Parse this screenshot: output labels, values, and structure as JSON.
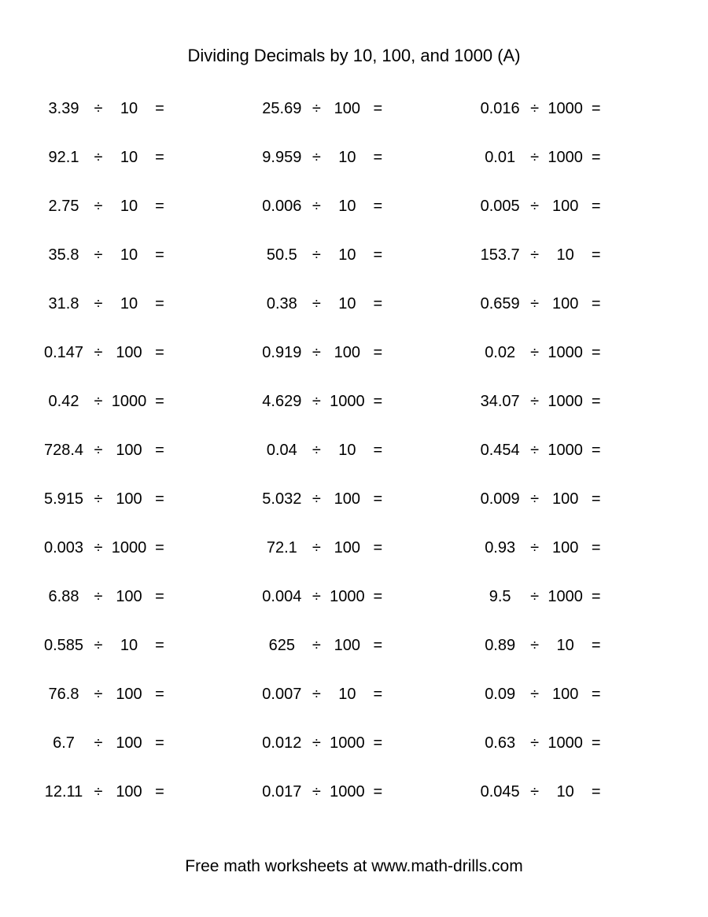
{
  "title": "Dividing Decimals by 10, 100, and 1000 (A)",
  "footer": "Free math worksheets at www.math-drills.com",
  "op_symbol": "÷",
  "eq_symbol": "=",
  "style": {
    "background_color": "#ffffff",
    "text_color": "#000000",
    "title_fontsize": 22,
    "body_fontsize": 20,
    "footer_fontsize": 21,
    "font_family": "Arial",
    "row_gap": 42,
    "columns": 3,
    "rows": 15
  },
  "columns": [
    [
      {
        "dividend": "3.39",
        "divisor": "10"
      },
      {
        "dividend": "92.1",
        "divisor": "10"
      },
      {
        "dividend": "2.75",
        "divisor": "10"
      },
      {
        "dividend": "35.8",
        "divisor": "10"
      },
      {
        "dividend": "31.8",
        "divisor": "10"
      },
      {
        "dividend": "0.147",
        "divisor": "100"
      },
      {
        "dividend": "0.42",
        "divisor": "1000"
      },
      {
        "dividend": "728.4",
        "divisor": "100"
      },
      {
        "dividend": "5.915",
        "divisor": "100"
      },
      {
        "dividend": "0.003",
        "divisor": "1000"
      },
      {
        "dividend": "6.88",
        "divisor": "100"
      },
      {
        "dividend": "0.585",
        "divisor": "10"
      },
      {
        "dividend": "76.8",
        "divisor": "100"
      },
      {
        "dividend": "6.7",
        "divisor": "100"
      },
      {
        "dividend": "12.11",
        "divisor": "100"
      }
    ],
    [
      {
        "dividend": "25.69",
        "divisor": "100"
      },
      {
        "dividend": "9.959",
        "divisor": "10"
      },
      {
        "dividend": "0.006",
        "divisor": "10"
      },
      {
        "dividend": "50.5",
        "divisor": "10"
      },
      {
        "dividend": "0.38",
        "divisor": "10"
      },
      {
        "dividend": "0.919",
        "divisor": "100"
      },
      {
        "dividend": "4.629",
        "divisor": "1000"
      },
      {
        "dividend": "0.04",
        "divisor": "10"
      },
      {
        "dividend": "5.032",
        "divisor": "100"
      },
      {
        "dividend": "72.1",
        "divisor": "100"
      },
      {
        "dividend": "0.004",
        "divisor": "1000"
      },
      {
        "dividend": "625",
        "divisor": "100"
      },
      {
        "dividend": "0.007",
        "divisor": "10"
      },
      {
        "dividend": "0.012",
        "divisor": "1000"
      },
      {
        "dividend": "0.017",
        "divisor": "1000"
      }
    ],
    [
      {
        "dividend": "0.016",
        "divisor": "1000"
      },
      {
        "dividend": "0.01",
        "divisor": "1000"
      },
      {
        "dividend": "0.005",
        "divisor": "100"
      },
      {
        "dividend": "153.7",
        "divisor": "10"
      },
      {
        "dividend": "0.659",
        "divisor": "100"
      },
      {
        "dividend": "0.02",
        "divisor": "1000"
      },
      {
        "dividend": "34.07",
        "divisor": "1000"
      },
      {
        "dividend": "0.454",
        "divisor": "1000"
      },
      {
        "dividend": "0.009",
        "divisor": "100"
      },
      {
        "dividend": "0.93",
        "divisor": "100"
      },
      {
        "dividend": "9.5",
        "divisor": "1000"
      },
      {
        "dividend": "0.89",
        "divisor": "10"
      },
      {
        "dividend": "0.09",
        "divisor": "100"
      },
      {
        "dividend": "0.63",
        "divisor": "1000"
      },
      {
        "dividend": "0.045",
        "divisor": "10"
      }
    ]
  ]
}
